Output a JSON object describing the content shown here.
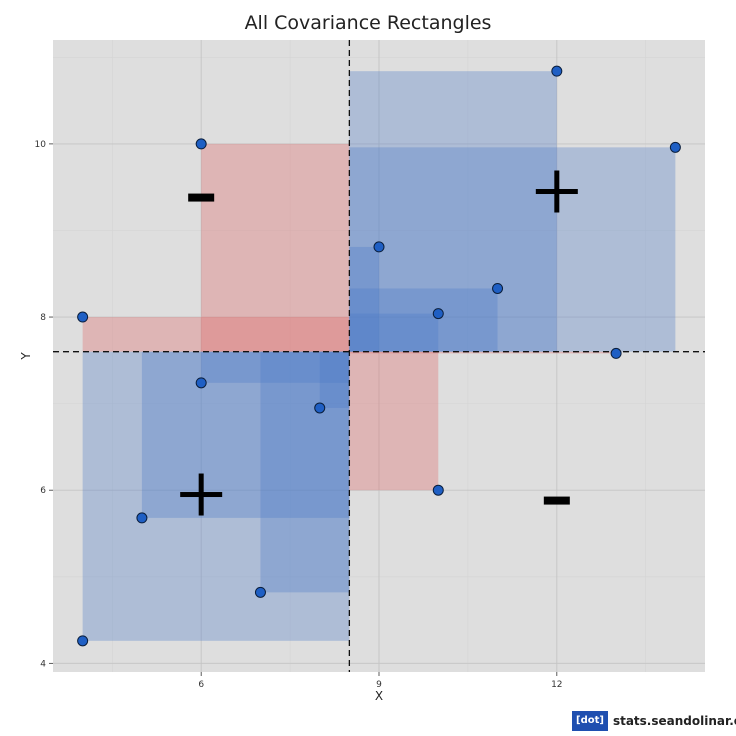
{
  "chart_data": {
    "type": "scatter",
    "title": "All Covariance Rectangles",
    "xlabel": "X",
    "ylabel": "Y",
    "xlim": [
      3.5,
      14.5
    ],
    "ylim": [
      3.9,
      11.2
    ],
    "x_ticks": [
      6,
      9,
      12
    ],
    "y_ticks": [
      4,
      6,
      8,
      10
    ],
    "grid": true,
    "mean_x": 8.5,
    "mean_y": 7.6,
    "points": [
      {
        "x": 4,
        "y": 8.0
      },
      {
        "x": 4,
        "y": 4.26
      },
      {
        "x": 5,
        "y": 5.68
      },
      {
        "x": 6,
        "y": 10.0
      },
      {
        "x": 6,
        "y": 7.24
      },
      {
        "x": 7,
        "y": 4.82
      },
      {
        "x": 8,
        "y": 6.95
      },
      {
        "x": 9,
        "y": 8.81
      },
      {
        "x": 10,
        "y": 8.04
      },
      {
        "x": 10,
        "y": 6.0
      },
      {
        "x": 11,
        "y": 8.33
      },
      {
        "x": 12,
        "y": 10.84
      },
      {
        "x": 13,
        "y": 7.58
      },
      {
        "x": 14,
        "y": 9.96
      }
    ],
    "quadrant_signs": [
      {
        "x": 6,
        "y": 9.38,
        "sign": "-"
      },
      {
        "x": 12,
        "y": 9.45,
        "sign": "+"
      },
      {
        "x": 6,
        "y": 5.95,
        "sign": "+"
      },
      {
        "x": 12,
        "y": 5.88,
        "sign": "-"
      }
    ],
    "colors": {
      "positive": "#4a78c8",
      "negative": "#e06060",
      "point_fill": "#1f5fc4",
      "panel_bg": "#dedede",
      "grid": "#c4c4c4"
    }
  },
  "branding": {
    "badge": "[dot]",
    "site": "stats.seandolinar.com"
  }
}
